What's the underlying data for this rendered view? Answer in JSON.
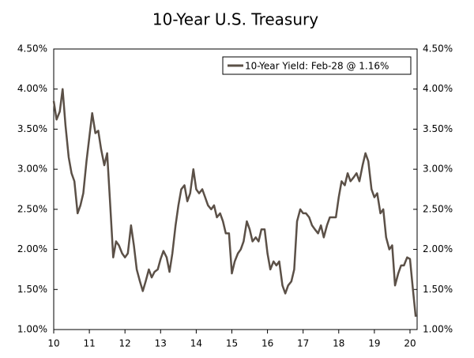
{
  "chart_data": {
    "type": "line",
    "title": "10-Year U.S. Treasury",
    "x": [
      10.0,
      10.08,
      10.17,
      10.25,
      10.33,
      10.42,
      10.5,
      10.58,
      10.67,
      10.75,
      10.83,
      10.92,
      11.0,
      11.08,
      11.17,
      11.25,
      11.33,
      11.42,
      11.5,
      11.58,
      11.67,
      11.75,
      11.83,
      11.92,
      12.0,
      12.08,
      12.17,
      12.25,
      12.33,
      12.42,
      12.5,
      12.58,
      12.67,
      12.75,
      12.83,
      12.92,
      13.0,
      13.08,
      13.17,
      13.25,
      13.33,
      13.42,
      13.5,
      13.58,
      13.67,
      13.75,
      13.83,
      13.92,
      14.0,
      14.08,
      14.17,
      14.25,
      14.33,
      14.42,
      14.5,
      14.58,
      14.67,
      14.75,
      14.83,
      14.92,
      15.0,
      15.08,
      15.17,
      15.25,
      15.33,
      15.42,
      15.5,
      15.58,
      15.67,
      15.75,
      15.83,
      15.92,
      16.0,
      16.08,
      16.17,
      16.25,
      16.33,
      16.42,
      16.5,
      16.58,
      16.67,
      16.75,
      16.83,
      16.92,
      17.0,
      17.08,
      17.17,
      17.25,
      17.33,
      17.42,
      17.5,
      17.58,
      17.67,
      17.75,
      17.83,
      17.92,
      18.0,
      18.08,
      18.17,
      18.25,
      18.33,
      18.42,
      18.5,
      18.58,
      18.67,
      18.75,
      18.83,
      18.92,
      19.0,
      19.08,
      19.17,
      19.25,
      19.33,
      19.42,
      19.5,
      19.58,
      19.67,
      19.75,
      19.83,
      19.92,
      20.0,
      20.08,
      20.16
    ],
    "series": [
      {
        "name": "10-Year Yield: Feb-28 @ 1.16%",
        "color": "#5b5047",
        "values": [
          3.85,
          3.62,
          3.72,
          4.0,
          3.55,
          3.15,
          2.95,
          2.85,
          2.45,
          2.55,
          2.7,
          3.1,
          3.4,
          3.7,
          3.45,
          3.48,
          3.25,
          3.05,
          3.2,
          2.6,
          1.9,
          2.1,
          2.05,
          1.95,
          1.9,
          1.95,
          2.3,
          2.05,
          1.75,
          1.6,
          1.48,
          1.6,
          1.75,
          1.65,
          1.72,
          1.75,
          1.88,
          1.98,
          1.9,
          1.72,
          1.95,
          2.3,
          2.55,
          2.75,
          2.8,
          2.6,
          2.7,
          3.0,
          2.75,
          2.7,
          2.75,
          2.65,
          2.55,
          2.5,
          2.55,
          2.4,
          2.45,
          2.35,
          2.2,
          2.2,
          1.7,
          1.85,
          1.95,
          2.0,
          2.1,
          2.35,
          2.25,
          2.1,
          2.15,
          2.1,
          2.25,
          2.25,
          1.95,
          1.75,
          1.85,
          1.8,
          1.85,
          1.55,
          1.45,
          1.55,
          1.6,
          1.75,
          2.35,
          2.5,
          2.45,
          2.45,
          2.4,
          2.3,
          2.25,
          2.2,
          2.3,
          2.15,
          2.3,
          2.4,
          2.4,
          2.4,
          2.65,
          2.85,
          2.8,
          2.95,
          2.85,
          2.9,
          2.95,
          2.85,
          3.05,
          3.2,
          3.1,
          2.75,
          2.65,
          2.7,
          2.45,
          2.5,
          2.15,
          2.0,
          2.05,
          1.55,
          1.7,
          1.8,
          1.8,
          1.9,
          1.88,
          1.51,
          1.16
        ]
      }
    ],
    "xlim": [
      10,
      20.2
    ],
    "xticks": [
      10,
      11,
      12,
      13,
      14,
      15,
      16,
      17,
      18,
      19,
      20
    ],
    "ylim": [
      1,
      4.5
    ],
    "yticks": [
      {
        "value": 1,
        "label": "1.00%"
      },
      {
        "value": 1.5,
        "label": "1.50%"
      },
      {
        "value": 2,
        "label": "2.00%"
      },
      {
        "value": 2.5,
        "label": "2.50%"
      },
      {
        "value": 3,
        "label": "3.00%"
      },
      {
        "value": 3.5,
        "label": "3.50%"
      },
      {
        "value": 4,
        "label": "4.00%"
      },
      {
        "value": 4.5,
        "label": "4.50%"
      }
    ],
    "y2lim": [
      1,
      4.5
    ],
    "y2ticks": [
      {
        "value": 1,
        "label": "1.00%"
      },
      {
        "value": 1.5,
        "label": "1.50%"
      },
      {
        "value": 2,
        "label": "2.00%"
      },
      {
        "value": 2.5,
        "label": "2.50%"
      },
      {
        "value": 3,
        "label": "3.00%"
      },
      {
        "value": 3.5,
        "label": "3.50%"
      },
      {
        "value": 4,
        "label": "4.00%"
      },
      {
        "value": 4.5,
        "label": "4.50%"
      }
    ],
    "grid": false,
    "legend": "top-right"
  }
}
